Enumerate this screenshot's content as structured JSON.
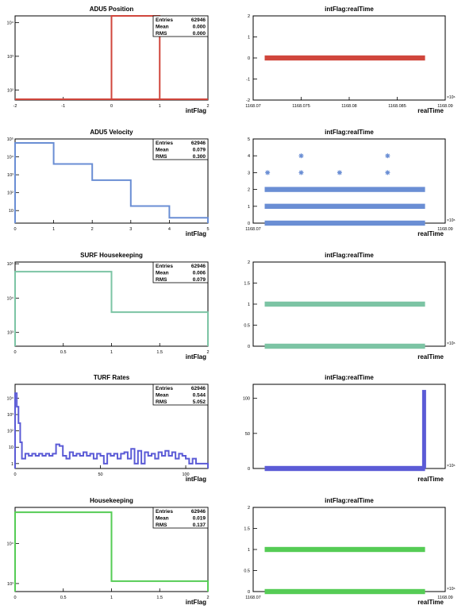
{
  "chart_data": [
    {
      "type": "histogram",
      "title": "ADU5 Position",
      "xlabel": "intFlag",
      "ylabel": "",
      "xlim": [
        -2,
        2
      ],
      "log_y": true,
      "ylim_exp": [
        1.7,
        4.2
      ],
      "xticks": [
        -2,
        -1,
        0,
        1,
        2
      ],
      "xtick_labels": [
        "-2",
        "-1",
        "0",
        "1",
        "2"
      ],
      "yticks_exp": [
        2,
        3,
        4
      ],
      "ytick_labels": [
        "10²",
        "10³",
        "10⁴"
      ],
      "color": "#d0463c",
      "bins": [
        {
          "x0": 0,
          "x1": 1,
          "y": 62946
        }
      ],
      "stats": {
        "Entries": "62946",
        "Mean": "0.000",
        "RMS": "0.000"
      }
    },
    {
      "type": "scatter",
      "title": "intFlag:realTime",
      "xlabel": "realTime",
      "ylabel": "",
      "xlim": [
        1168.07,
        1168.09
      ],
      "ylim": [
        -2,
        2
      ],
      "xticks": [
        1168.07,
        1168.075,
        1168.08,
        1168.085,
        1168.09
      ],
      "xtick_labels": [
        "1168.07",
        "1168.075",
        "1168.08",
        "1168.085",
        "1168.09"
      ],
      "yticks": [
        -2,
        -1,
        0,
        1,
        2
      ],
      "ytick_labels": [
        "-2",
        "-1",
        "0",
        "1",
        "2"
      ],
      "x_multiplier": "×10⁶",
      "color": "#d0463c",
      "bands": [
        {
          "x0": 1168.0712,
          "x1": 1168.0879,
          "y": 0
        }
      ],
      "points": []
    },
    {
      "type": "histogram",
      "title": "ADU5 Velocity",
      "xlabel": "intFlag",
      "ylabel": "",
      "xlim": [
        0,
        5
      ],
      "log_y": true,
      "ylim_exp": [
        0.3,
        5.0
      ],
      "xticks": [
        0,
        1,
        2,
        3,
        4,
        5
      ],
      "xtick_labels": [
        "0",
        "1",
        "2",
        "3",
        "4",
        "5"
      ],
      "yticks_exp": [
        1,
        2,
        3,
        4,
        5
      ],
      "ytick_labels": [
        "10",
        "10²",
        "10³",
        "10⁴",
        "10⁵"
      ],
      "color": "#6a8ed4",
      "bins": [
        {
          "x0": 0,
          "x1": 1,
          "y": 60000
        },
        {
          "x0": 1,
          "x1": 2,
          "y": 4000
        },
        {
          "x0": 2,
          "x1": 3,
          "y": 500
        },
        {
          "x0": 3,
          "x1": 4,
          "y": 18
        },
        {
          "x0": 4,
          "x1": 5,
          "y": 4
        }
      ],
      "stats": {
        "Entries": "62946",
        "Mean": "0.079",
        "RMS": "0.300"
      }
    },
    {
      "type": "scatter",
      "title": "intFlag:realTime",
      "xlabel": "realTime",
      "ylabel": "",
      "xlim": [
        1168.07,
        1168.09
      ],
      "ylim": [
        0,
        5
      ],
      "xticks": [
        1168.07,
        1168.09
      ],
      "xtick_labels": [
        "1168.07",
        "1168.09"
      ],
      "yticks": [
        0,
        1,
        2,
        3,
        4,
        5
      ],
      "ytick_labels": [
        "0",
        "1",
        "2",
        "3",
        "4",
        "5"
      ],
      "x_multiplier": "×10⁶",
      "color": "#6a8ed4",
      "bands": [
        {
          "x0": 1168.0712,
          "x1": 1168.0879,
          "y": 0
        },
        {
          "x0": 1168.0712,
          "x1": 1168.0879,
          "y": 1
        },
        {
          "x0": 1168.0712,
          "x1": 1168.0879,
          "y": 2
        }
      ],
      "points": [
        {
          "x": 1168.0715,
          "y": 3
        },
        {
          "x": 1168.075,
          "y": 3
        },
        {
          "x": 1168.075,
          "y": 4
        },
        {
          "x": 1168.079,
          "y": 3
        },
        {
          "x": 1168.084,
          "y": 3
        },
        {
          "x": 1168.084,
          "y": 4
        }
      ]
    },
    {
      "type": "histogram",
      "title": "SURF Housekeeping",
      "xlabel": "intFlag",
      "ylabel": "",
      "xlim": [
        0,
        2
      ],
      "log_y": true,
      "ylim_exp": [
        2.6,
        5.05
      ],
      "xticks": [
        0,
        0.5,
        1,
        1.5,
        2
      ],
      "xtick_labels": [
        "0",
        "0.5",
        "1",
        "1.5",
        "2"
      ],
      "yticks_exp": [
        3,
        4,
        5
      ],
      "ytick_labels": [
        "10³",
        "10⁴",
        "10⁵"
      ],
      "color": "#7cc4a4",
      "bins": [
        {
          "x0": 0,
          "x1": 1,
          "y": 59000
        },
        {
          "x0": 1,
          "x1": 2,
          "y": 3900
        }
      ],
      "stats": {
        "Entries": "62946",
        "Mean": "0.006",
        "RMS": "0.079"
      }
    },
    {
      "type": "scatter",
      "title": "intFlag:realTime",
      "xlabel": "realTime",
      "ylabel": "",
      "xlim": [
        1168.07,
        1168.09
      ],
      "ylim": [
        0,
        2
      ],
      "xticks": [],
      "xtick_labels": [],
      "yticks": [
        0,
        0.5,
        1,
        1.5,
        2
      ],
      "ytick_labels": [
        "0",
        "0.5",
        "1",
        "1.5",
        "2"
      ],
      "x_multiplier": "×10⁶",
      "color": "#7cc4a4",
      "bands": [
        {
          "x0": 1168.0712,
          "x1": 1168.0879,
          "y": 0
        },
        {
          "x0": 1168.0712,
          "x1": 1168.0879,
          "y": 1
        }
      ],
      "points": []
    },
    {
      "type": "histogram",
      "title": "TURF Rates",
      "xlabel": "intFlag",
      "ylabel": "",
      "xlim": [
        0,
        113
      ],
      "log_y": true,
      "ylim_exp": [
        -0.3,
        4.85
      ],
      "xticks": [
        0,
        50,
        100
      ],
      "xtick_labels": [
        "0",
        "50",
        "100"
      ],
      "yticks_exp": [
        0,
        1,
        2,
        3,
        4
      ],
      "ytick_labels": [
        "1",
        "10",
        "10²",
        "10³",
        "10⁴"
      ],
      "color": "#5b5bd6",
      "bins": [
        {
          "x0": 0,
          "x1": 1,
          "y": 20000
        },
        {
          "x0": 1,
          "x1": 2,
          "y": 3000
        },
        {
          "x0": 2,
          "x1": 3,
          "y": 300
        },
        {
          "x0": 3,
          "x1": 4,
          "y": 20
        },
        {
          "x0": 4,
          "x1": 6,
          "y": 2
        },
        {
          "x0": 6,
          "x1": 8,
          "y": 4
        },
        {
          "x0": 8,
          "x1": 10,
          "y": 3
        },
        {
          "x0": 10,
          "x1": 12,
          "y": 4
        },
        {
          "x0": 12,
          "x1": 14,
          "y": 3
        },
        {
          "x0": 14,
          "x1": 16,
          "y": 4
        },
        {
          "x0": 16,
          "x1": 18,
          "y": 3
        },
        {
          "x0": 18,
          "x1": 20,
          "y": 4
        },
        {
          "x0": 20,
          "x1": 22,
          "y": 3
        },
        {
          "x0": 22,
          "x1": 24,
          "y": 4
        },
        {
          "x0": 24,
          "x1": 26,
          "y": 15
        },
        {
          "x0": 26,
          "x1": 28,
          "y": 12
        },
        {
          "x0": 28,
          "x1": 30,
          "y": 3
        },
        {
          "x0": 30,
          "x1": 32,
          "y": 2
        },
        {
          "x0": 32,
          "x1": 34,
          "y": 5
        },
        {
          "x0": 34,
          "x1": 36,
          "y": 3
        },
        {
          "x0": 36,
          "x1": 38,
          "y": 4
        },
        {
          "x0": 38,
          "x1": 40,
          "y": 3
        },
        {
          "x0": 40,
          "x1": 42,
          "y": 5
        },
        {
          "x0": 42,
          "x1": 44,
          "y": 3
        },
        {
          "x0": 44,
          "x1": 46,
          "y": 4
        },
        {
          "x0": 46,
          "x1": 48,
          "y": 2
        },
        {
          "x0": 48,
          "x1": 50,
          "y": 4
        },
        {
          "x0": 50,
          "x1": 52,
          "y": 3
        },
        {
          "x0": 52,
          "x1": 54,
          "y": 1
        },
        {
          "x0": 54,
          "x1": 56,
          "y": 4
        },
        {
          "x0": 56,
          "x1": 58,
          "y": 3
        },
        {
          "x0": 58,
          "x1": 60,
          "y": 4
        },
        {
          "x0": 60,
          "x1": 62,
          "y": 2
        },
        {
          "x0": 62,
          "x1": 64,
          "y": 4
        },
        {
          "x0": 64,
          "x1": 66,
          "y": 5
        },
        {
          "x0": 66,
          "x1": 68,
          "y": 2
        },
        {
          "x0": 68,
          "x1": 70,
          "y": 8
        },
        {
          "x0": 70,
          "x1": 72,
          "y": 1
        },
        {
          "x0": 72,
          "x1": 74,
          "y": 6
        },
        {
          "x0": 74,
          "x1": 76,
          "y": 1
        },
        {
          "x0": 76,
          "x1": 78,
          "y": 5
        },
        {
          "x0": 78,
          "x1": 80,
          "y": 3
        },
        {
          "x0": 80,
          "x1": 82,
          "y": 4
        },
        {
          "x0": 82,
          "x1": 84,
          "y": 2
        },
        {
          "x0": 84,
          "x1": 86,
          "y": 5
        },
        {
          "x0": 86,
          "x1": 88,
          "y": 3
        },
        {
          "x0": 88,
          "x1": 90,
          "y": 6
        },
        {
          "x0": 90,
          "x1": 92,
          "y": 3
        },
        {
          "x0": 92,
          "x1": 94,
          "y": 5
        },
        {
          "x0": 94,
          "x1": 96,
          "y": 2
        },
        {
          "x0": 96,
          "x1": 98,
          "y": 4
        },
        {
          "x0": 98,
          "x1": 100,
          "y": 3
        },
        {
          "x0": 100,
          "x1": 102,
          "y": 2
        },
        {
          "x0": 102,
          "x1": 104,
          "y": 1
        },
        {
          "x0": 104,
          "x1": 106,
          "y": 2
        },
        {
          "x0": 106,
          "x1": 108,
          "y": 1
        },
        {
          "x0": 108,
          "x1": 110,
          "y": 1
        },
        {
          "x0": 110,
          "x1": 113,
          "y": 1
        }
      ],
      "stats": {
        "Entries": "62946",
        "Mean": "0.544",
        "RMS": "5.052"
      }
    },
    {
      "type": "scatter",
      "title": "intFlag:realTime",
      "xlabel": "realTime",
      "ylabel": "",
      "xlim": [
        1168.07,
        1168.09
      ],
      "ylim": [
        0,
        120
      ],
      "xticks": [],
      "xtick_labels": [],
      "yticks": [
        0,
        50,
        100
      ],
      "ytick_labels": [
        "0",
        "50",
        "100"
      ],
      "x_multiplier": "×10⁶",
      "color": "#5b5bd6",
      "bands": [
        {
          "x0": 1168.0712,
          "x1": 1168.0879,
          "y": 0
        }
      ],
      "spike": {
        "x": 1168.0878,
        "y0": 0,
        "y1": 112
      },
      "points": []
    },
    {
      "type": "histogram",
      "title": "Housekeeping",
      "xlabel": "intFlag",
      "ylabel": "",
      "xlim": [
        0,
        2
      ],
      "log_y": true,
      "ylim_exp": [
        2.8,
        4.9
      ],
      "xticks": [
        0,
        0.5,
        1,
        1.5,
        2
      ],
      "xtick_labels": [
        "0",
        "0.5",
        "1",
        "1.5",
        "2"
      ],
      "yticks_exp": [
        3,
        4
      ],
      "ytick_labels": [
        "10³",
        "10⁴"
      ],
      "color": "#55cc55",
      "bins": [
        {
          "x0": 0,
          "x1": 1,
          "y": 60000
        },
        {
          "x0": 1,
          "x1": 2,
          "y": 1150
        }
      ],
      "stats": {
        "Entries": "62946",
        "Mean": "0.019",
        "RMS": "0.137"
      }
    },
    {
      "type": "scatter",
      "title": "intFlag:realTime",
      "xlabel": "realTime",
      "ylabel": "",
      "xlim": [
        1168.07,
        1168.09
      ],
      "ylim": [
        0,
        2
      ],
      "xticks": [
        1168.07,
        1168.09
      ],
      "xtick_labels": [
        "1168.07",
        "1168.09"
      ],
      "yticks": [
        0,
        0.5,
        1,
        1.5,
        2
      ],
      "ytick_labels": [
        "0",
        "0.5",
        "1",
        "1.5",
        "2"
      ],
      "x_multiplier": "×10⁶",
      "color": "#55cc55",
      "bands": [
        {
          "x0": 1168.0712,
          "x1": 1168.0879,
          "y": 0
        },
        {
          "x0": 1168.0712,
          "x1": 1168.0879,
          "y": 1
        }
      ],
      "points": []
    }
  ]
}
